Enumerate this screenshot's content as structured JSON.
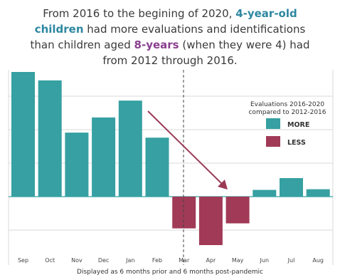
{
  "title": {
    "line1_a": "From 2016 to the begining of 2020, ",
    "line1_b": "4-year-old",
    "line2_a": "children",
    "line2_b": " had more evaluations and identifications",
    "line3_a": "than children aged ",
    "line3_b": "8-years",
    "line3_c": " (when they were 4) had",
    "line4": "from 2012 through 2016."
  },
  "footer": "Displayed as 6 months prior and 6 months post-pandemic",
  "colors": {
    "more": "#36a0a2",
    "less": "#a13a56",
    "arrow": "#9b3a55",
    "grid": "#d9d9d9"
  },
  "chart_data": {
    "type": "bar",
    "categories": [
      "Sep",
      "Oct",
      "Nov",
      "Dec",
      "Jan",
      "Feb",
      "Mar",
      "Apr",
      "May",
      "Jun",
      "Jul",
      "Aug"
    ],
    "values": [
      3.7,
      3.45,
      1.9,
      2.35,
      2.85,
      1.75,
      -0.95,
      -1.45,
      -0.8,
      0.2,
      0.55,
      0.22
    ],
    "ylim": [
      -1.45,
      3.7
    ],
    "grid": true,
    "legend": {
      "title_line1": "Evaluations 2016-2020",
      "title_line2": "compared to 2012-2016",
      "placement": "right",
      "items": [
        {
          "label": "MORE",
          "color": "#36a0a2"
        },
        {
          "label": "LESS",
          "color": "#a13a56"
        }
      ]
    },
    "divider_after": "Feb"
  }
}
